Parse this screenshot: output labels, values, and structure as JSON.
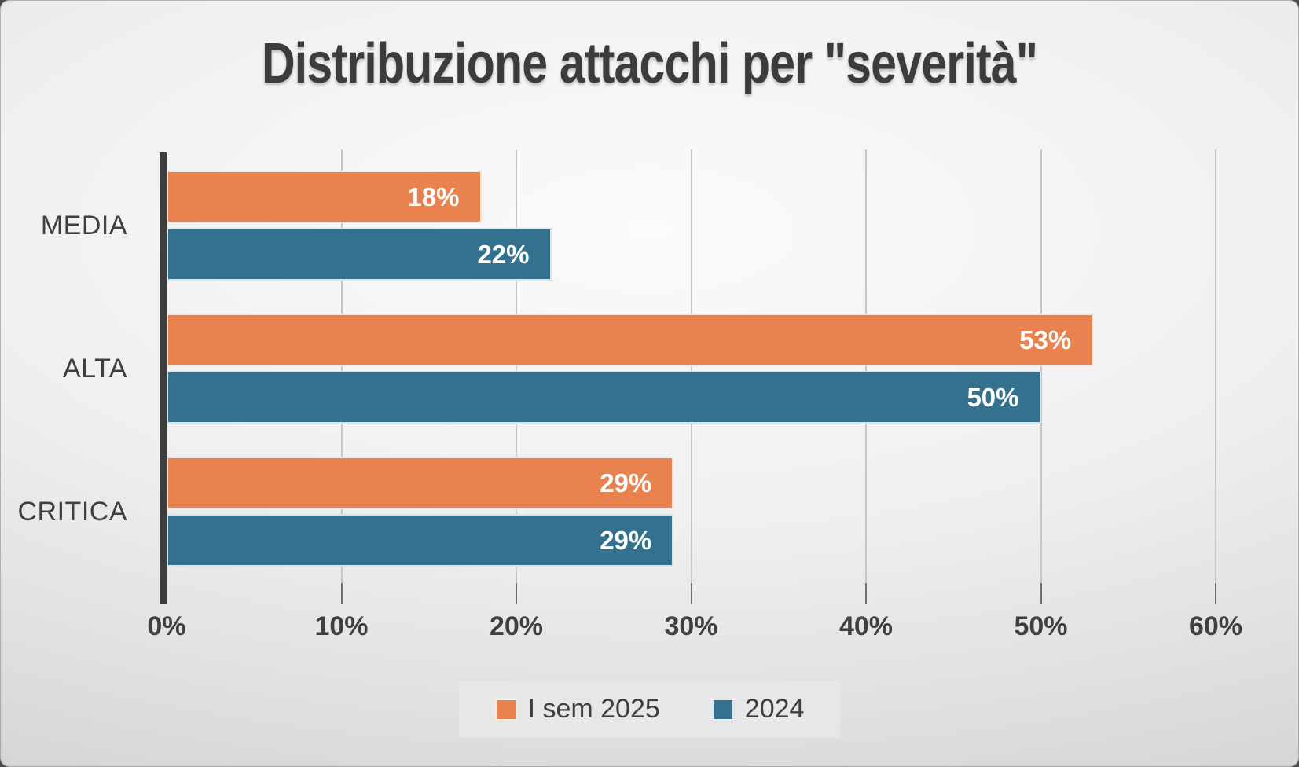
{
  "title": "Distribuzione attacchi per \"severità\"",
  "chart_data": {
    "type": "bar",
    "orientation": "horizontal",
    "title": "Distribuzione attacchi per \"severità\"",
    "categories": [
      "MEDIA",
      "ALTA",
      "CRITICA"
    ],
    "series": [
      {
        "name": "I sem 2025",
        "color": "#E8824E",
        "values": [
          18,
          53,
          29
        ]
      },
      {
        "name": "2024",
        "color": "#34718F",
        "values": [
          22,
          50,
          29
        ]
      }
    ],
    "data_labels": [
      [
        "18%",
        "53%",
        "29%"
      ],
      [
        "22%",
        "50%",
        "29%"
      ]
    ],
    "value_axis": {
      "min": 0,
      "max": 60,
      "tick_step": 10,
      "tick_labels": [
        "0%",
        "10%",
        "20%",
        "30%",
        "40%",
        "50%",
        "60%"
      ],
      "format": "percent"
    },
    "grid": true,
    "legend_position": "bottom"
  },
  "palette": {
    "series_1_orange": "#E8824E",
    "series_2_teal": "#34718F",
    "text": "#3f3f3f",
    "axis_line": "#3d3d3d",
    "gridline": "#c6c6c6",
    "tick_mark": "#6f6f6f",
    "bar_label_text": "#ffffff",
    "legend_background": "#e7e7e7",
    "slide_background_center": "#fbfbfb",
    "slide_background_edge": "#cbcbcb"
  }
}
